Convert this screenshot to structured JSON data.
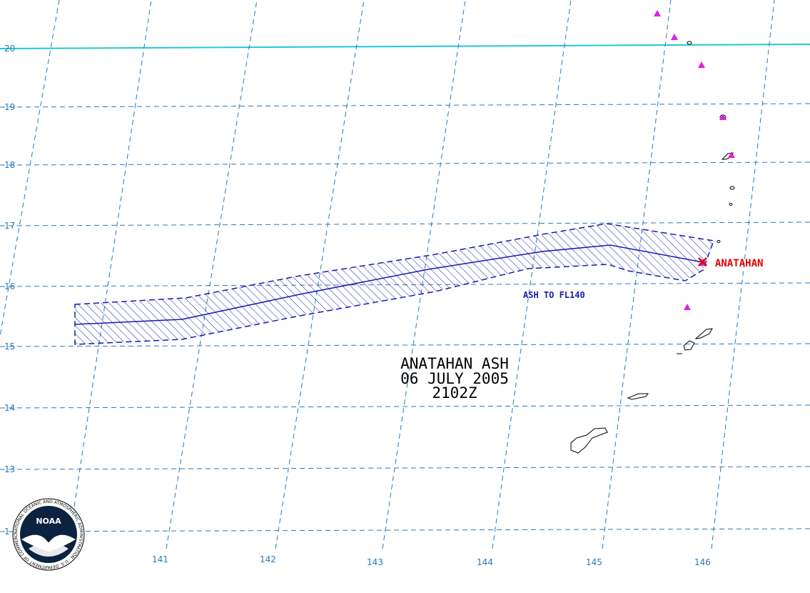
{
  "map": {
    "title_lines": [
      "ANATAHAN ASH",
      "06 JULY 2005",
      "2102Z"
    ],
    "ash_label": "ASH TO FL140",
    "volcano_label": "ANATAHAN",
    "lat_labels": [
      "20",
      "19",
      "18",
      "17",
      "16",
      "15",
      "14",
      "13",
      "1"
    ],
    "lon_labels": [
      "141",
      "142",
      "143",
      "144",
      "145",
      "146"
    ],
    "colors": {
      "grid": "#2a78b8",
      "tropic_line": "#20c8d8",
      "ash_outline": "#1a1ab0",
      "volcano_marker": "#e00000",
      "volcano_triangles": "#e020e0",
      "logo_bg": "#0b2240"
    },
    "icons": [
      "noaa-logo",
      "volcano-triangle-icon",
      "volcano-x-marker-icon"
    ]
  },
  "logo": {
    "text": "NOAA",
    "ring_text": "NATIONAL OCEANIC AND ATMOSPHERIC ADMINISTRATION · U.S. DEPARTMENT OF COMMERCE"
  }
}
